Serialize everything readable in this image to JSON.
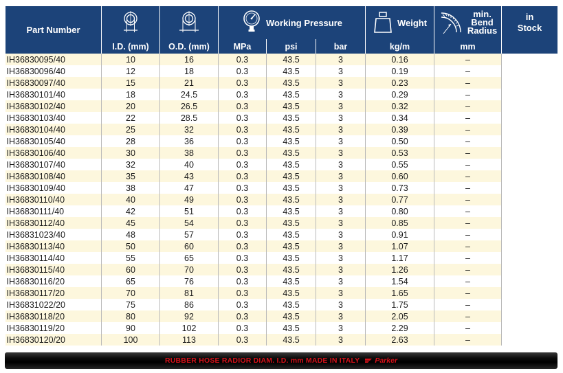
{
  "header": {
    "part_number": "Part Number",
    "working_pressure": "Working Pressure",
    "weight": "Weight",
    "bend_line1": "min.",
    "bend_line2": "Bend",
    "bend_line3": "Radius",
    "stock_line1": "in",
    "stock_line2": "Stock",
    "id_unit": "I.D. (mm)",
    "od_unit": "O.D. (mm)",
    "mpa": "MPa",
    "psi": "psi",
    "bar": "bar",
    "kgm": "kg/m",
    "mm": "mm"
  },
  "rows": [
    {
      "part": "IH36830095/40",
      "id": "10",
      "od": "16",
      "mpa": "0.3",
      "psi": "43.5",
      "bar": "3",
      "weight": "0.16",
      "bend": "–"
    },
    {
      "part": "IH36830096/40",
      "id": "12",
      "od": "18",
      "mpa": "0.3",
      "psi": "43.5",
      "bar": "3",
      "weight": "0.19",
      "bend": "–"
    },
    {
      "part": "IH36830097/40",
      "id": "15",
      "od": "21",
      "mpa": "0.3",
      "psi": "43.5",
      "bar": "3",
      "weight": "0.23",
      "bend": "–"
    },
    {
      "part": "IH36830101/40",
      "id": "18",
      "od": "24.5",
      "mpa": "0.3",
      "psi": "43.5",
      "bar": "3",
      "weight": "0.29",
      "bend": "–"
    },
    {
      "part": "IH36830102/40",
      "id": "20",
      "od": "26.5",
      "mpa": "0.3",
      "psi": "43.5",
      "bar": "3",
      "weight": "0.32",
      "bend": "–"
    },
    {
      "part": "IH36830103/40",
      "id": "22",
      "od": "28.5",
      "mpa": "0.3",
      "psi": "43.5",
      "bar": "3",
      "weight": "0.34",
      "bend": "–"
    },
    {
      "part": "IH36830104/40",
      "id": "25",
      "od": "32",
      "mpa": "0.3",
      "psi": "43.5",
      "bar": "3",
      "weight": "0.39",
      "bend": "–"
    },
    {
      "part": "IH36830105/40",
      "id": "28",
      "od": "36",
      "mpa": "0.3",
      "psi": "43.5",
      "bar": "3",
      "weight": "0.50",
      "bend": "–"
    },
    {
      "part": "IH36830106/40",
      "id": "30",
      "od": "38",
      "mpa": "0.3",
      "psi": "43.5",
      "bar": "3",
      "weight": "0.53",
      "bend": "–"
    },
    {
      "part": "IH36830107/40",
      "id": "32",
      "od": "40",
      "mpa": "0.3",
      "psi": "43.5",
      "bar": "3",
      "weight": "0.55",
      "bend": "–"
    },
    {
      "part": "IH36830108/40",
      "id": "35",
      "od": "43",
      "mpa": "0.3",
      "psi": "43.5",
      "bar": "3",
      "weight": "0.60",
      "bend": "–"
    },
    {
      "part": "IH36830109/40",
      "id": "38",
      "od": "47",
      "mpa": "0.3",
      "psi": "43.5",
      "bar": "3",
      "weight": "0.73",
      "bend": "–"
    },
    {
      "part": "IH36830110/40",
      "id": "40",
      "od": "49",
      "mpa": "0.3",
      "psi": "43.5",
      "bar": "3",
      "weight": "0.77",
      "bend": "–"
    },
    {
      "part": "IH36830111/40",
      "id": "42",
      "od": "51",
      "mpa": "0.3",
      "psi": "43.5",
      "bar": "3",
      "weight": "0.80",
      "bend": "–"
    },
    {
      "part": "IH36830112/40",
      "id": "45",
      "od": "54",
      "mpa": "0.3",
      "psi": "43.5",
      "bar": "3",
      "weight": "0.85",
      "bend": "–"
    },
    {
      "part": "IH36831023/40",
      "id": "48",
      "od": "57",
      "mpa": "0.3",
      "psi": "43.5",
      "bar": "3",
      "weight": "0.91",
      "bend": "–"
    },
    {
      "part": "IH36830113/40",
      "id": "50",
      "od": "60",
      "mpa": "0.3",
      "psi": "43.5",
      "bar": "3",
      "weight": "1.07",
      "bend": "–"
    },
    {
      "part": "IH36830114/40",
      "id": "55",
      "od": "65",
      "mpa": "0.3",
      "psi": "43.5",
      "bar": "3",
      "weight": "1.17",
      "bend": "–"
    },
    {
      "part": "IH36830115/40",
      "id": "60",
      "od": "70",
      "mpa": "0.3",
      "psi": "43.5",
      "bar": "3",
      "weight": "1.26",
      "bend": "–"
    },
    {
      "part": "IH36830116/20",
      "id": "65",
      "od": "76",
      "mpa": "0.3",
      "psi": "43.5",
      "bar": "3",
      "weight": "1.54",
      "bend": "–"
    },
    {
      "part": "IH36830117/20",
      "id": "70",
      "od": "81",
      "mpa": "0.3",
      "psi": "43.5",
      "bar": "3",
      "weight": "1.65",
      "bend": "–"
    },
    {
      "part": "IH36831022/20",
      "id": "75",
      "od": "86",
      "mpa": "0.3",
      "psi": "43.5",
      "bar": "3",
      "weight": "1.75",
      "bend": "–"
    },
    {
      "part": "IH36830118/20",
      "id": "80",
      "od": "92",
      "mpa": "0.3",
      "psi": "43.5",
      "bar": "3",
      "weight": "2.05",
      "bend": "–"
    },
    {
      "part": "IH36830119/20",
      "id": "90",
      "od": "102",
      "mpa": "0.3",
      "psi": "43.5",
      "bar": "3",
      "weight": "2.29",
      "bend": "–"
    },
    {
      "part": "IH36830120/20",
      "id": "100",
      "od": "113",
      "mpa": "0.3",
      "psi": "43.5",
      "bar": "3",
      "weight": "2.63",
      "bend": "–"
    }
  ],
  "hose": {
    "print": "RUBBER HOSE RADIOR DIAM. I.D. mm MADE IN ITALY",
    "brand": "Parker"
  },
  "icons": {
    "id": "inner-diameter-icon",
    "od": "outer-diameter-icon",
    "pressure": "pressure-gauge-icon",
    "weight": "weight-icon",
    "bend": "bend-radius-icon"
  },
  "colors": {
    "header_bg": "#1c4379",
    "row_odd": "#fdf7dd",
    "row_even": "#ffffff",
    "hose_text": "#d8121a"
  }
}
